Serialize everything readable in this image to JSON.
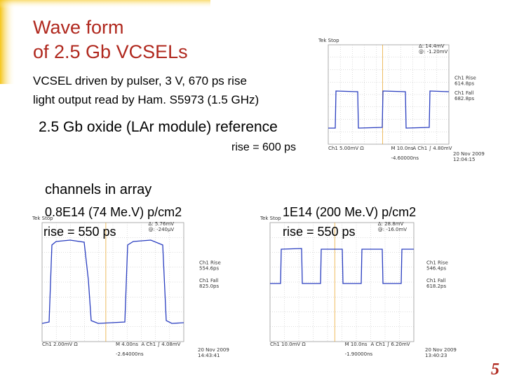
{
  "title": {
    "line1": "Wave form",
    "line2": "of 2.5 Gb VCSELs"
  },
  "intro": [
    "VCSEL driven  by pulser, 3 V, 670 ps rise",
    "light output  read by Ham. S5973 (1.5 GHz)"
  ],
  "reference": {
    "label": "2.5 Gb oxide (LAr module) reference",
    "rise": "rise = 600 ps"
  },
  "channels": {
    "heading": "channels in array",
    "left": {
      "label": "0.8E14 (74 Me.V) p/cm2",
      "rise": "rise = 550 ps"
    },
    "right": {
      "label": "1E14 (200 Me.V) p/cm2",
      "rise": "rise = 550 ps"
    }
  },
  "scopes": [
    {
      "header": "Tek Stop",
      "cursor_delta": "Δ: 14.4mV",
      "cursor_at": "@: -1.20mV",
      "rise_label": "Ch1 Rise",
      "rise_value": "614.8ps",
      "fall_label": "Ch1 Fall",
      "fall_value": "682.8ps",
      "ch_scale": "Ch1  5.00mV Ω",
      "timebase": "M 10.0ns",
      "trigger": "A  Ch1  ∫  4.80mV",
      "date": "20 Nov 2009",
      "time": "12:04:15",
      "offset": "-4.60000ns"
    },
    {
      "header": "Tek Stop",
      "cursor_delta": "Δ: 5.76mV",
      "cursor_at": "@: -240μV",
      "rise_label": "Ch1 Rise",
      "rise_value": "554.6ps",
      "fall_label": "Ch1 Fall",
      "fall_value": "825.0ps",
      "ch_scale": "Ch1  2.00mV Ω",
      "timebase": "M 4.00ns",
      "trigger": "A  Ch1  ∫  4.08mV",
      "date": "20 Nov 2009",
      "time": "14:43:41",
      "offset": "-2.64000ns"
    },
    {
      "header": "Tek Stop",
      "cursor_delta": "Δ: 28.8mV",
      "cursor_at": "@: -16.0mV",
      "rise_label": "Ch1 Rise",
      "rise_value": "546.4ps",
      "fall_label": "Ch1 Fall",
      "fall_value": "618.2ps",
      "ch_scale": "Ch1  10.0mV Ω",
      "timebase": "M 10.0ns",
      "trigger": "A  Ch1  ∫  6.20mV",
      "date": "20 Nov 2009",
      "time": "13:40:23",
      "offset": "-1.90000ns"
    }
  ],
  "page_number": "5"
}
